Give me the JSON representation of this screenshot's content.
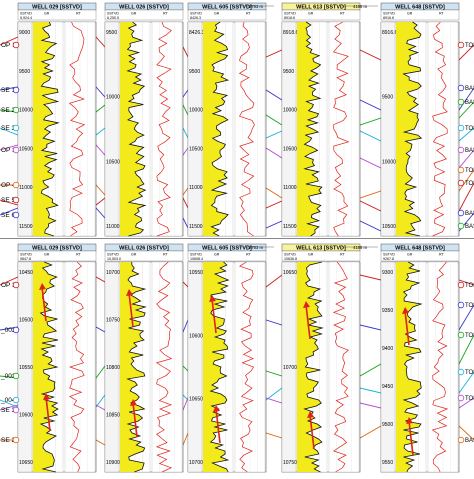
{
  "panels": [
    {
      "id": "top",
      "wells": [
        {
          "name": "WELL 029 [SSTVD]",
          "depths": [
            "9000",
            "9500",
            "10000",
            "10500",
            "11000",
            "11500"
          ],
          "datum": "5,924.4"
        },
        {
          "name": "WELL 026 [SSTVD]",
          "depths": [
            "9500",
            "10000",
            "10500",
            "11000"
          ],
          "datum": "6,250.5"
        },
        {
          "name": "WELL 605 [SSTVD]",
          "depths": [
            "8426.3",
            "9500",
            "10000",
            "10500",
            "11000",
            "11500"
          ],
          "datum": "8426.3"
        },
        {
          "name": "WELL 613 [SSTVD]",
          "depths": [
            "8918.6",
            "9500",
            "10000",
            "10500",
            "11000",
            "11500"
          ],
          "datum": "8918.6"
        },
        {
          "name": "WELL 648 [SSTVD]",
          "depths": [
            "8916.6",
            "9500",
            "10000",
            "10500"
          ],
          "datum": "8916.6"
        }
      ],
      "distances": [
        "2783 m",
        "4188 m"
      ],
      "left_labels": [
        "OP 1",
        "SE 1",
        "SE 2",
        "SE 3",
        "OP 3",
        "OP 4",
        "SE 5",
        "SE 6"
      ],
      "right_labels": [
        "TOP",
        "BAS",
        "BAS",
        "TOP",
        "BAS",
        "TOP",
        "TOP",
        "BAS",
        "BAS"
      ]
    },
    {
      "id": "bottom",
      "wells": [
        {
          "name": "WELL 029 [SSTVD]",
          "depths": [
            "10450",
            "10500",
            "10550",
            "10600",
            "10650"
          ],
          "datum": "9847.8"
        },
        {
          "name": "WELL 026 [SSTVD]",
          "depths": [
            "10700",
            "10750",
            "10800",
            "10850",
            "10900"
          ],
          "datum": "10,503.0"
        },
        {
          "name": "WELL 605 [SSTVD]",
          "depths": [
            "10550",
            "10600",
            "10650",
            "10700"
          ],
          "datum": "10698.4"
        },
        {
          "name": "WELL 613 [SSTVD]",
          "depths": [
            "10650",
            "10700",
            "10750"
          ],
          "datum": "10636.8"
        },
        {
          "name": "WELL 648 [SSTVD]",
          "depths": [
            "9300",
            "9350",
            "9400",
            "9450",
            "9500",
            "9550"
          ],
          "datum": "9267.8"
        }
      ],
      "distances": [
        "2783 m",
        "4188 m"
      ],
      "left_labels": [
        "OP 3",
        "_002",
        "_003",
        "_004",
        "SE 3",
        "SE 2"
      ],
      "right_labels": [
        "TOR",
        "TOR",
        "TOR",
        "TOR",
        "TOR",
        "BAS"
      ]
    }
  ],
  "track_labels": {
    "gr": "GR",
    "rt": "RT",
    "sstvd": "SSTVD"
  },
  "colors": {
    "header": "#cfe3f3",
    "header_active": "#f7f39c",
    "gr_fill": "#f2ea1a",
    "curve": "#111111",
    "rt_curve": "#e0221a",
    "arrow": "#e0221a",
    "horizons": [
      "#d21f1f",
      "#3b3bd6",
      "#1aa81a",
      "#19b5d8",
      "#b84ad8",
      "#e06a14"
    ]
  }
}
